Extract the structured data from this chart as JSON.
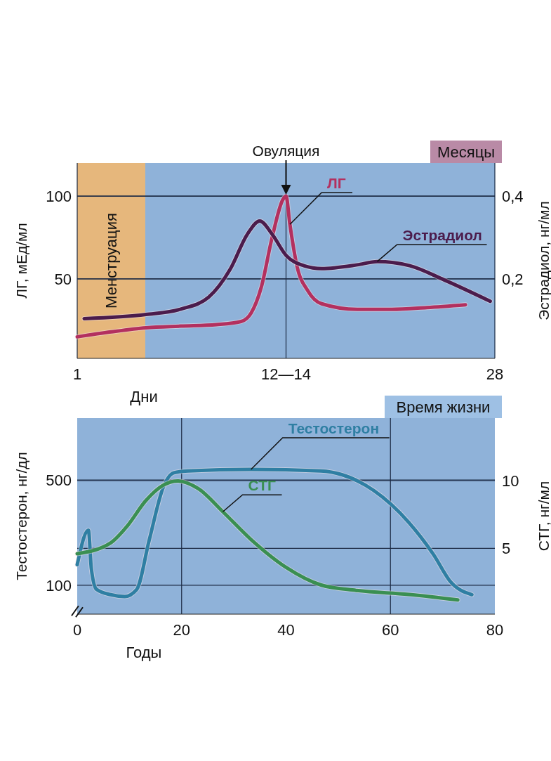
{
  "chart_data": [
    {
      "type": "line",
      "xlabel": "Дни",
      "ylabel": "ЛГ, мЕд/мл",
      "y2label": "Эстрадиол, нг/мл",
      "xlim": [
        1,
        28
      ],
      "xticks": [
        1,
        {
          "value": 14.5,
          "label": "12—14"
        },
        28
      ],
      "ylim": [
        2,
        120
      ],
      "yticks": [
        50,
        100
      ],
      "y2lim": [
        0.008,
        0.48
      ],
      "y2ticks": [
        {
          "value": 0.2,
          "label": "0,2"
        },
        {
          "value": 0.4,
          "label": "0,4"
        }
      ],
      "grid": true,
      "bands": [
        {
          "axis": "x",
          "from": 1,
          "to": 5.4,
          "label": "Менструация",
          "color": "#e6b77c"
        }
      ],
      "annotations": [
        {
          "text": "Овуляция",
          "x": 14.5,
          "y": 100
        },
        "Месяцы"
      ],
      "series": [
        {
          "name": "ЛГ",
          "color": "#b3305f",
          "x": [
            1,
            3.2,
            5.45,
            7.7,
            10,
            11.6,
            12.25,
            12.9,
            13.6,
            14.3,
            14.5,
            14.75,
            15.2,
            15.9,
            16.8,
            19.1,
            21.35,
            23.6,
            26.1
          ],
          "values": [
            15,
            18,
            20.5,
            21.5,
            22.4,
            24.3,
            29.5,
            45,
            75,
            98,
            100,
            83,
            58,
            43,
            35,
            31.6,
            31.6,
            32.7,
            34.4
          ]
        },
        {
          "name": "Эстрадиол",
          "color": "#4b1c4c",
          "axis": "y2",
          "x": [
            1.45,
            5.45,
            7.7,
            9.5,
            10.9,
            12,
            12.8,
            13.6,
            14.5,
            15.65,
            16.8,
            19.1,
            20.4,
            22.5,
            24.7,
            27.7
          ],
          "values": [
            0.104,
            0.114,
            0.127,
            0.156,
            0.224,
            0.308,
            0.34,
            0.308,
            0.257,
            0.232,
            0.225,
            0.234,
            0.242,
            0.232,
            0.198,
            0.146
          ]
        }
      ]
    },
    {
      "type": "line",
      "xlabel": "Годы",
      "ylabel": "Тестостерон, нг/дл",
      "y2label": "СТГ, нг/мл",
      "xlim": [
        0,
        80
      ],
      "xticks": [
        0,
        20,
        40,
        60,
        80
      ],
      "ylim": [
        -10,
        735
      ],
      "yticks": [
        100,
        500
      ],
      "y2lim": [
        0.15,
        14.6
      ],
      "y2ticks": [
        5,
        10
      ],
      "grid": "y",
      "ref_lines": [
        {
          "axis": "x",
          "value": 20,
          "color": "#1c2a44"
        },
        {
          "axis": "x",
          "value": 60,
          "color": "#1c2a44"
        }
      ],
      "annotations": [
        "Время жизни"
      ],
      "series": [
        {
          "name": "Тестостерон",
          "color": "#2f7fa3",
          "x": [
            0,
            2.15,
            2.7,
            3.7,
            6.4,
            9.1,
            11.4,
            13.8,
            16.5,
            18.5,
            21.2,
            33.3,
            46.7,
            50.7,
            56.8,
            63.5,
            68.2,
            71.6,
            75.6
          ],
          "values": [
            178,
            309,
            164,
            84,
            64,
            57,
            84,
            272,
            473,
            527,
            534,
            540,
            534,
            520,
            460,
            339,
            218,
            111,
            64
          ]
        },
        {
          "name": "СТГ",
          "color": "#3a8f52",
          "axis": "y2",
          "x": [
            0,
            6.4,
            9.7,
            13.1,
            16.5,
            19.2,
            23.2,
            27.9,
            33.3,
            40,
            46.7,
            53.4,
            63.5,
            72.9
          ],
          "values": [
            4.6,
            5.4,
            6.7,
            8.5,
            9.66,
            9.97,
            9.4,
            7.7,
            5.65,
            3.6,
            2.3,
            1.9,
            1.6,
            1.2
          ]
        }
      ]
    }
  ]
}
